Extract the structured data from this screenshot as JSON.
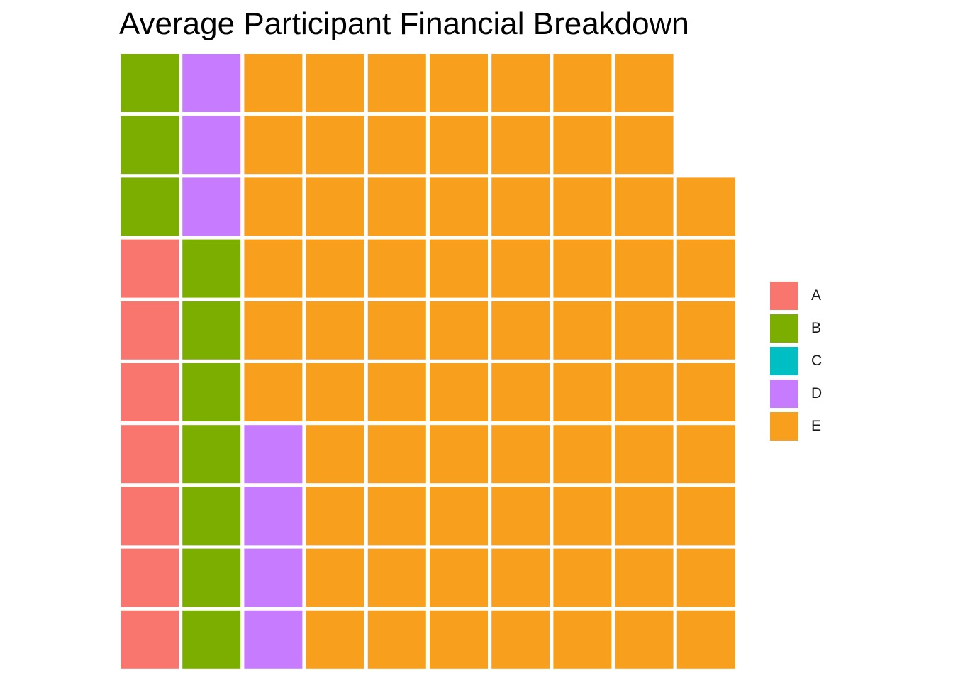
{
  "chart_data": {
    "type": "waffle",
    "title": "Average Participant Financial Breakdown",
    "grid": {
      "rows": 10,
      "columns": 10
    },
    "fill_order": "column-major, bottom-to-top, left-to-right",
    "categories": [
      "A",
      "B",
      "C",
      "D",
      "E"
    ],
    "values": [
      7,
      10,
      0,
      7,
      74
    ],
    "colors": {
      "A": "#F8766D",
      "B": "#7CAE00",
      "C": "#00BFC4",
      "D": "#C77CFF",
      "E": "#F8A01E"
    },
    "legend_position": "right",
    "axes_shown": false,
    "gridlines": false
  }
}
